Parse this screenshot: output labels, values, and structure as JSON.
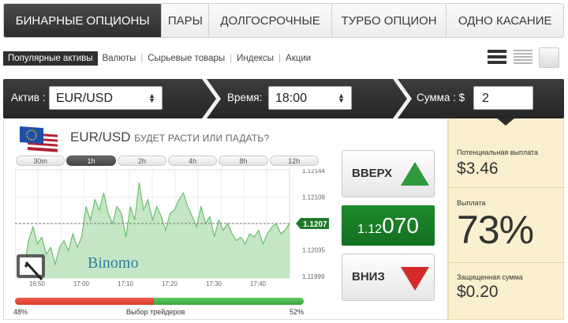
{
  "tabs": [
    {
      "label": "БИНАРНЫЕ ОПЦИОНЫ",
      "active": true
    },
    {
      "label": "ПАРЫ",
      "active": false
    },
    {
      "label": "ДОЛГОСРОЧНЫЕ",
      "active": false
    },
    {
      "label": "ТУРБО ОПЦИОН",
      "active": false
    },
    {
      "label": "ОДНО КАСАНИЕ",
      "active": false
    }
  ],
  "subnav": [
    {
      "label": "Популярные активы",
      "active": true
    },
    {
      "label": "Валюты",
      "active": false
    },
    {
      "label": "Сырьевые товары",
      "active": false
    },
    {
      "label": "Индексы",
      "active": false
    },
    {
      "label": "Акции",
      "active": false
    }
  ],
  "view_icons": [
    "list-view-icon",
    "compact-list-view-icon",
    "grid-view-icon"
  ],
  "selector": {
    "asset_label": "Актив :",
    "asset_value": "EUR/USD",
    "time_label": "Время:",
    "time_value": "18:00",
    "amount_label": "Сумма : $",
    "amount_value": "2"
  },
  "asset": {
    "name": "EUR/USD",
    "question": "БУДЕТ РАСТИ ИЛИ ПАДАТЬ?",
    "flag_icon": "eu-us-flag-icon"
  },
  "timeframes": [
    {
      "label": "30m",
      "active": false
    },
    {
      "label": "1h",
      "active": true
    },
    {
      "label": "2h",
      "active": false
    },
    {
      "label": "4h",
      "active": false
    },
    {
      "label": "8h",
      "active": false
    },
    {
      "label": "12h",
      "active": false
    }
  ],
  "chart_data": {
    "type": "area",
    "x_ticks": [
      "16:50",
      "17:00",
      "17:10",
      "17:20",
      "17:30",
      "17:40"
    ],
    "y_ticks": [
      "1.12144",
      "1.12108",
      "1.12071",
      "1.12035",
      "1.11999"
    ],
    "ylim": [
      1.1199,
      1.1215
    ],
    "current_price_label": "1.1207",
    "current_price": 1.1207,
    "watermark": "Binomo",
    "values": [
      1.12015,
      1.12005,
      1.12045,
      1.12065,
      1.1204,
      1.1205,
      1.12025,
      1.12035,
      1.1201,
      1.12035,
      1.12045,
      1.1203,
      1.12055,
      1.12035,
      1.1205,
      1.12095,
      1.12075,
      1.12105,
      1.1209,
      1.12115,
      1.12085,
      1.1207,
      1.12095,
      1.12085,
      1.1205,
      1.12095,
      1.12075,
      1.1213,
      1.1209,
      1.12105,
      1.12075,
      1.12095,
      1.1208,
      1.1206,
      1.12085,
      1.1209,
      1.12105,
      1.12115,
      1.12095,
      1.1208,
      1.12065,
      1.12095,
      1.1207,
      1.1208,
      1.1205,
      1.12075,
      1.1206,
      1.1207,
      1.12055,
      1.12045,
      1.1205,
      1.1204,
      1.12055,
      1.1205,
      1.1206,
      1.1204,
      1.12055,
      1.12065,
      1.1207,
      1.12055,
      1.1206,
      1.1207
    ],
    "line_color": "#6cbf6e",
    "fill_color": "#bfe4bf"
  },
  "buttons": {
    "up_label": "ВВЕРХ",
    "down_label": "ВНИЗ",
    "up_color": "#2f9a3c",
    "down_color": "#d42a2a"
  },
  "price": {
    "prefix": "1.12",
    "suffix": "070"
  },
  "traders": {
    "left_pct_label": "48%",
    "right_pct_label": "52%",
    "caption": "Выбор трейдеров",
    "sell_fraction": 0.48,
    "buy_fraction": 0.52
  },
  "payout": {
    "potential_label": "Потенциальная выплата",
    "potential_value": "$3.46",
    "payout_label": "Выплата",
    "payout_value": "73%",
    "protected_label": "Защищенная сумма",
    "protected_value": "$0.20"
  }
}
